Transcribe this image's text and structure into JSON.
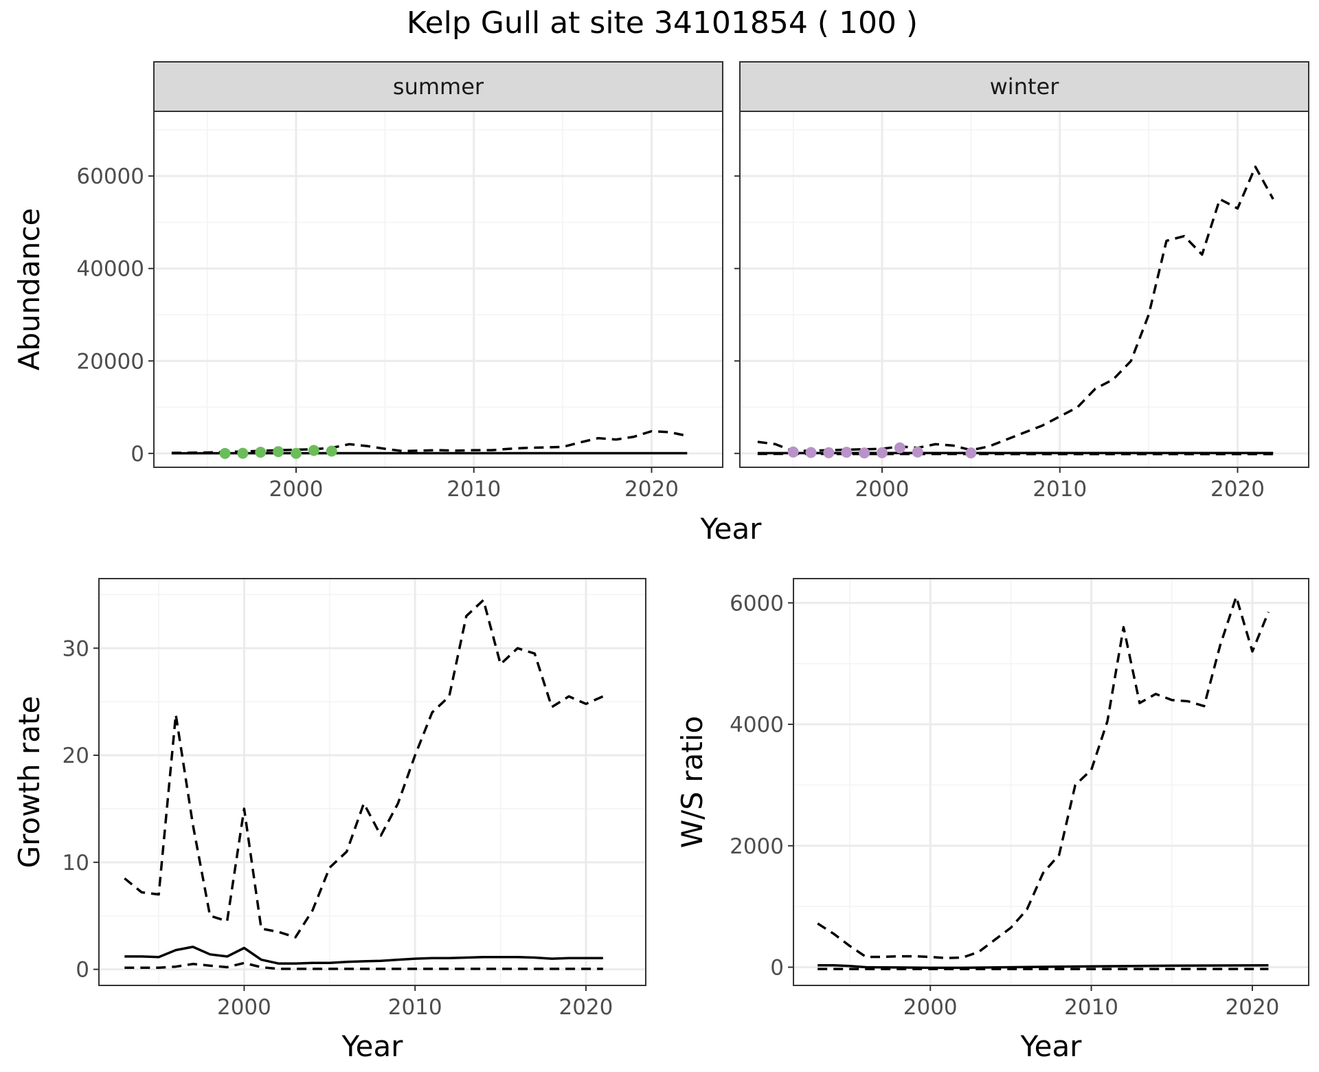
{
  "figure": {
    "title": "Kelp Gull at site 34101854 ( 100 )"
  },
  "colors": {
    "summer_points": "#6bbd5b",
    "winter_points": "#b892c8",
    "lines": "#000000"
  },
  "chart_data": [
    {
      "type": "line",
      "facet": "summer",
      "xlabel": "Year",
      "ylabel": "Abundance",
      "xlim": [
        1992,
        2024
      ],
      "ylim": [
        -3000,
        74000
      ],
      "x_ticks": [
        2000,
        2010,
        2020
      ],
      "y_ticks": [
        0,
        20000,
        40000,
        60000
      ],
      "series": [
        {
          "style": "dashed",
          "x": [
            1993,
            1995,
            1997,
            1999,
            2001,
            2002,
            2003,
            2004,
            2005,
            2006,
            2007,
            2008,
            2009,
            2010,
            2011,
            2012,
            2013,
            2014,
            2015,
            2016,
            2017,
            2018,
            2019,
            2020,
            2021,
            2022
          ],
          "y": [
            100,
            200,
            400,
            700,
            900,
            1200,
            2000,
            1600,
            1000,
            500,
            600,
            700,
            600,
            700,
            700,
            1000,
            1200,
            1300,
            1400,
            2400,
            3300,
            3000,
            3600,
            4800,
            4600,
            3800
          ]
        },
        {
          "style": "solid",
          "x": [
            1993,
            2000,
            2005,
            2010,
            2015,
            2020,
            2022
          ],
          "y": [
            30,
            40,
            40,
            40,
            40,
            40,
            40
          ]
        },
        {
          "style": "points",
          "x": [
            1996,
            1997,
            1998,
            1999,
            2000,
            2001,
            2002
          ],
          "y": [
            0,
            30,
            250,
            380,
            10,
            650,
            500
          ]
        }
      ]
    },
    {
      "type": "line",
      "facet": "winter",
      "xlabel": "Year",
      "ylabel": "Abundance",
      "xlim": [
        1992,
        2024
      ],
      "ylim": [
        -3000,
        74000
      ],
      "x_ticks": [
        2000,
        2010,
        2020
      ],
      "y_ticks": [
        0,
        20000,
        40000,
        60000
      ],
      "series": [
        {
          "style": "dashed",
          "x": [
            1993,
            1994,
            1995,
            1996,
            1997,
            1998,
            1999,
            2000,
            2001,
            2002,
            2003,
            2004,
            2005,
            2006,
            2007,
            2008,
            2009,
            2010,
            2011,
            2012,
            2013,
            2014,
            2015,
            2016,
            2017,
            2018,
            2019,
            2020,
            2021,
            2022
          ],
          "y": [
            2500,
            2000,
            500,
            600,
            700,
            800,
            900,
            1000,
            1500,
            1200,
            2000,
            1700,
            700,
            1500,
            3000,
            4500,
            6000,
            8000,
            10000,
            14000,
            16000,
            20000,
            30000,
            46000,
            47000,
            43000,
            55000,
            53000,
            62000,
            55000
          ]
        },
        {
          "style": "dashed",
          "x": [
            1993,
            2000,
            2005,
            2010,
            2015,
            2020,
            2022
          ],
          "y": [
            -100,
            -120,
            -120,
            -150,
            -150,
            -150,
            -150
          ]
        },
        {
          "style": "solid",
          "x": [
            1993,
            2000,
            2005,
            2010,
            2015,
            2020,
            2022
          ],
          "y": [
            60,
            80,
            80,
            80,
            80,
            80,
            80
          ]
        },
        {
          "style": "points",
          "x": [
            1995,
            1996,
            1997,
            1998,
            1999,
            2000,
            2001,
            2002,
            2005
          ],
          "y": [
            300,
            200,
            150,
            250,
            100,
            150,
            1200,
            300,
            100
          ]
        }
      ]
    },
    {
      "type": "line",
      "xlabel": "Year",
      "ylabel": "Growth rate",
      "xlim": [
        1991.5,
        2023.5
      ],
      "ylim": [
        -1.5,
        36.5
      ],
      "x_ticks": [
        2000,
        2010,
        2020
      ],
      "y_ticks": [
        0,
        10,
        20,
        30
      ],
      "series": [
        {
          "style": "dashed",
          "x": [
            1993,
            1994,
            1995,
            1996,
            1997,
            1998,
            1999,
            2000,
            2001,
            2002,
            2003,
            2004,
            2005,
            2006,
            2007,
            2008,
            2009,
            2010,
            2011,
            2012,
            2013,
            2014,
            2015,
            2016,
            2017,
            2018,
            2019,
            2020,
            2021
          ],
          "y": [
            8.5,
            7.2,
            7.0,
            23.8,
            13.5,
            5.0,
            4.5,
            15.0,
            3.8,
            3.5,
            3.0,
            5.5,
            9.5,
            11.0,
            15.5,
            12.5,
            15.5,
            20.0,
            24.0,
            25.5,
            33.0,
            34.5,
            28.5,
            30.0,
            29.5,
            24.5,
            25.5,
            24.8,
            25.5
          ]
        },
        {
          "style": "solid",
          "x": [
            1993,
            1994,
            1995,
            1996,
            1997,
            1998,
            1999,
            2000,
            2001,
            2002,
            2003,
            2004,
            2005,
            2006,
            2007,
            2008,
            2009,
            2010,
            2011,
            2012,
            2013,
            2014,
            2015,
            2016,
            2017,
            2018,
            2019,
            2020,
            2021
          ],
          "y": [
            1.2,
            1.2,
            1.15,
            1.8,
            2.1,
            1.4,
            1.2,
            2.0,
            0.9,
            0.55,
            0.55,
            0.6,
            0.6,
            0.7,
            0.75,
            0.8,
            0.9,
            1.0,
            1.05,
            1.05,
            1.1,
            1.15,
            1.15,
            1.15,
            1.1,
            1.0,
            1.05,
            1.05,
            1.05
          ]
        },
        {
          "style": "dashed",
          "x": [
            1993,
            1994,
            1995,
            1996,
            1997,
            1998,
            1999,
            2000,
            2001,
            2002,
            2003,
            2004,
            2005,
            2006,
            2007,
            2008,
            2009,
            2010,
            2011,
            2012,
            2013,
            2014,
            2015,
            2016,
            2017,
            2018,
            2019,
            2020,
            2021
          ],
          "y": [
            0.15,
            0.15,
            0.15,
            0.25,
            0.5,
            0.35,
            0.2,
            0.6,
            0.2,
            0.05,
            0.05,
            0.05,
            0.05,
            0.05,
            0.05,
            0.05,
            0.05,
            0.05,
            0.05,
            0.05,
            0.05,
            0.05,
            0.05,
            0.05,
            0.05,
            0.05,
            0.05,
            0.05,
            0.05
          ]
        }
      ]
    },
    {
      "type": "line",
      "xlabel": "Year",
      "ylabel": "W/S ratio",
      "xlim": [
        1991.5,
        2023.5
      ],
      "ylim": [
        -300,
        6400
      ],
      "x_ticks": [
        2000,
        2010,
        2020
      ],
      "y_ticks": [
        0,
        2000,
        4000,
        6000
      ],
      "series": [
        {
          "style": "dashed",
          "x": [
            1993,
            1994,
            1995,
            1996,
            1997,
            1998,
            1999,
            2000,
            2001,
            2002,
            2003,
            2004,
            2005,
            2006,
            2007,
            2008,
            2009,
            2010,
            2011,
            2012,
            2013,
            2014,
            2015,
            2016,
            2017,
            2018,
            2019,
            2020,
            2021
          ],
          "y": [
            720,
            550,
            350,
            170,
            170,
            180,
            180,
            170,
            150,
            160,
            250,
            450,
            650,
            950,
            1550,
            1850,
            3000,
            3250,
            4050,
            5600,
            4350,
            4500,
            4400,
            4380,
            4300,
            5300,
            6100,
            5200,
            5850
          ]
        },
        {
          "style": "solid",
          "x": [
            1993,
            1994,
            1995,
            1996,
            1998,
            2000,
            2002,
            2005,
            2010,
            2015,
            2021
          ],
          "y": [
            30,
            30,
            20,
            0,
            -5,
            -10,
            -10,
            0,
            15,
            25,
            30
          ]
        },
        {
          "style": "dashed",
          "x": [
            1993,
            2000,
            2005,
            2010,
            2015,
            2021
          ],
          "y": [
            -30,
            -30,
            -30,
            -30,
            -30,
            -30
          ]
        }
      ]
    }
  ]
}
